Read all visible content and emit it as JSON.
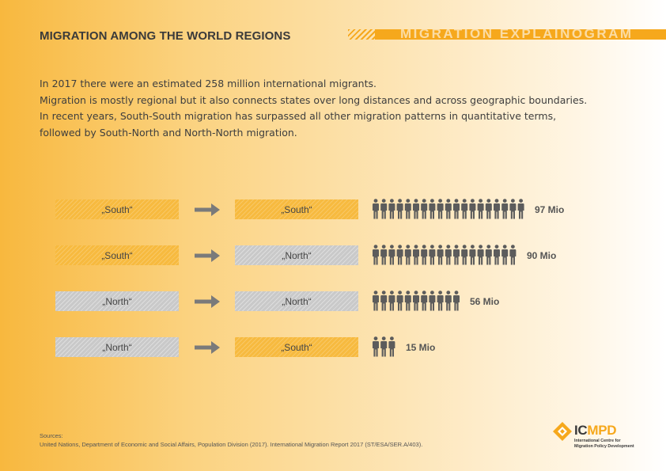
{
  "header": {
    "title": "MIGRATION AMONG THE WORLD REGIONS",
    "banner": "MIGRATION EXPLAINOGRAM"
  },
  "intro": {
    "lines": [
      "In 2017 there were an estimated 258 million international migrants.",
      "Migration is mostly regional but it also connects states over long distances and across geographic boundaries.",
      "In recent years, South-South migration has surpassed all other migration patterns in quantitative terms,",
      "followed by South-North and North-North migration."
    ]
  },
  "chart_data": {
    "type": "bar",
    "unit_label": "Mio",
    "rows": [
      {
        "from": "„South“",
        "to": "„South“",
        "value": 97,
        "value_label": "97 Mio",
        "from_region": "south",
        "to_region": "south"
      },
      {
        "from": "„South“",
        "to": "„North“",
        "value": 90,
        "value_label": "90 Mio",
        "from_region": "south",
        "to_region": "north"
      },
      {
        "from": "„North“",
        "to": "„North“",
        "value": 56,
        "value_label": "56 Mio",
        "from_region": "north",
        "to_region": "north"
      },
      {
        "from": "„North“",
        "to": "„South“",
        "value": 15,
        "value_label": "15 Mio",
        "from_region": "north",
        "to_region": "south"
      }
    ],
    "pictogram": {
      "icon": "person-icon",
      "color": "#5c5c5c"
    },
    "colors": {
      "south": "#f7ba3f",
      "north": "#c9c9c9",
      "arrow": "#7a7a7a"
    }
  },
  "sources": {
    "label": "Sources:",
    "text": "United Nations, Department of Economic and Social Affairs, Population Division (2017). International Migration Report 2017 (ST/ESA/SER.A/403)."
  },
  "logo": {
    "name_part1": "IC",
    "name_part2": "MPD",
    "subtitle_line1": "International Centre for",
    "subtitle_line2": "Migration Policy Development"
  },
  "theme": {
    "accent": "#f6a81c"
  }
}
